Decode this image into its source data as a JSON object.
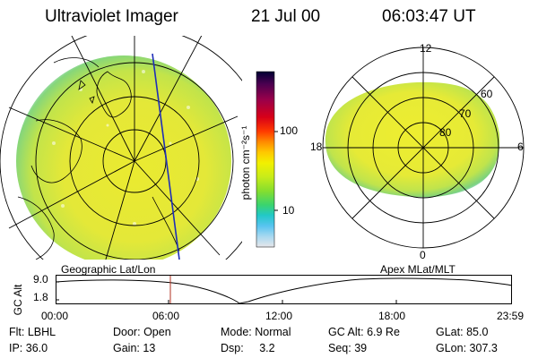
{
  "header": {
    "instrument": "Ultraviolet Imager",
    "date": "21 Jul 00",
    "time": "06:03:47 UT"
  },
  "colorbar": {
    "unit_label": "photon cm⁻²s⁻¹",
    "ticks": [
      "100",
      "10"
    ],
    "colors": [
      "#000033",
      "#4a0050",
      "#9a004a",
      "#d80018",
      "#ff3a00",
      "#ff8a00",
      "#ffc800",
      "#f2f000",
      "#c8ec1a",
      "#86de2e",
      "#3ad46e",
      "#22c8c8",
      "#58c4f0",
      "#a8d8f0",
      "#e6e6ea"
    ]
  },
  "geo_panel": {
    "label": "Geographic Lat/Lon",
    "image_colors": {
      "main": "#eaea30",
      "mid": "#c8e640",
      "edge": "#88d878",
      "rim": "#a0e0f0"
    }
  },
  "apex_panel": {
    "label": "Apex MLat/MLT",
    "mlt_labels": {
      "top": "12",
      "bottom": "0",
      "left": "18",
      "right": "6"
    },
    "lat_labels": [
      "60",
      "70",
      "80"
    ]
  },
  "altitude_plot": {
    "ylabel": "GC Alt",
    "yticks": [
      "9.0",
      "1.8"
    ],
    "xticks": [
      "00:00",
      "06:00",
      "12:00",
      "18:00",
      "23:59"
    ],
    "marker_time": "06:03"
  },
  "info": {
    "flt": {
      "label": "Flt:",
      "value": "LBHL"
    },
    "ip": {
      "label": "IP:",
      "value": "36.0"
    },
    "door": {
      "label": "Door:",
      "value": "Open"
    },
    "gain": {
      "label": "Gain:",
      "value": "13"
    },
    "mode": {
      "label": "Mode:",
      "value": "Normal"
    },
    "dsp": {
      "label": "Dsp:",
      "value": "3.2"
    },
    "gcalt": {
      "label": "GC Alt:",
      "value": "6.9 Re"
    },
    "seq": {
      "label": "Seq:",
      "value": "39"
    },
    "glat": {
      "label": "GLat:",
      "value": "85.0"
    },
    "glon": {
      "label": "GLon:",
      "value": "307.3"
    }
  }
}
